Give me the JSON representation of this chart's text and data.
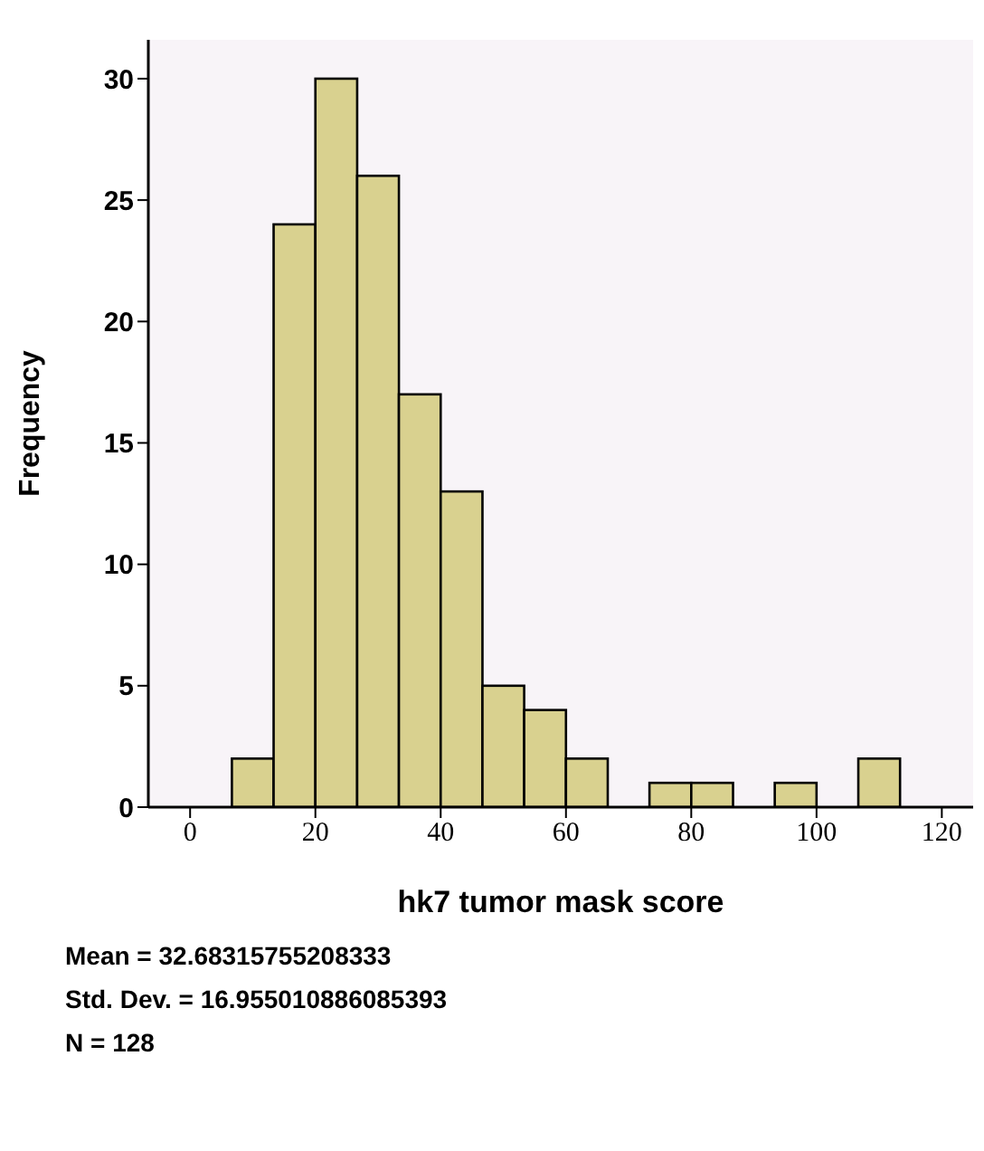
{
  "chart_data": {
    "type": "histogram",
    "xlabel": "hk7  tumor mask score",
    "ylabel": "Frequency",
    "bins": [
      6.67,
      13.33,
      20,
      26.67,
      33.33,
      40,
      46.67,
      53.33,
      60,
      66.67,
      73.33,
      80,
      86.67,
      93.33,
      100,
      106.67,
      113.33
    ],
    "values": [
      2,
      24,
      30,
      26,
      17,
      13,
      5,
      4,
      2,
      0,
      1,
      1,
      0,
      1,
      0,
      2
    ],
    "color": "#d9d18f",
    "xlim": [
      -6.67,
      125
    ],
    "xticks": [
      0,
      20,
      40,
      60,
      80,
      100,
      120
    ],
    "ylim": [
      0,
      31.6
    ],
    "yticks": [
      0,
      5,
      10,
      15,
      20,
      25,
      30
    ],
    "annotations": [
      "Mean = 32.68315755208333",
      "Std. Dev. = 16.955010886085393",
      "N = 128"
    ]
  }
}
